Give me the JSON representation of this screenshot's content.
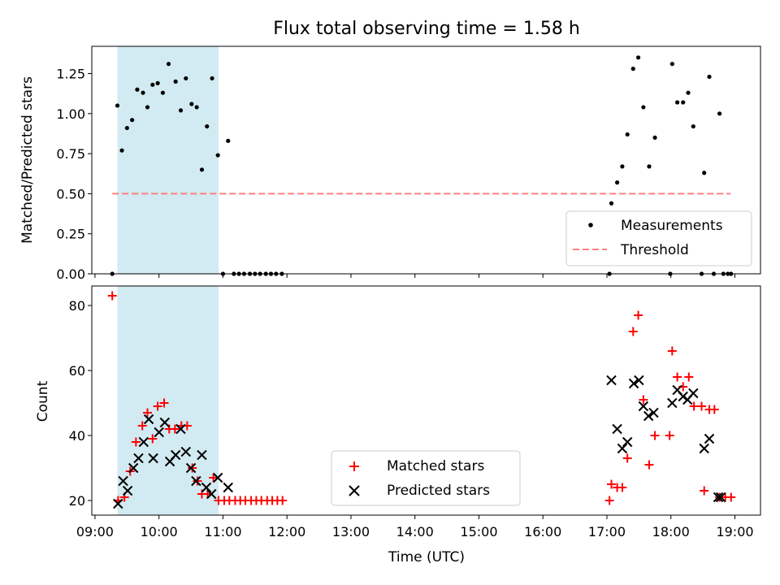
{
  "chart_data": {
    "type": "scatter",
    "title": "Flux total observing time = 1.58 h",
    "xlabel": "Time (UTC)",
    "x_unit": "hours UTC",
    "xlim": [
      8.95,
      19.4
    ],
    "x_ticks": [
      {
        "v": 9,
        "label": "09:00"
      },
      {
        "v": 10,
        "label": "10:00"
      },
      {
        "v": 11,
        "label": "11:00"
      },
      {
        "v": 12,
        "label": "12:00"
      },
      {
        "v": 13,
        "label": "13:00"
      },
      {
        "v": 14,
        "label": "14:00"
      },
      {
        "v": 15,
        "label": "15:00"
      },
      {
        "v": 16,
        "label": "16:00"
      },
      {
        "v": 17,
        "label": "17:00"
      },
      {
        "v": 18,
        "label": "18:00"
      },
      {
        "v": 19,
        "label": "19:00"
      }
    ],
    "shaded_interval": {
      "x0": 9.35,
      "x1": 10.93,
      "color": "#add8e6"
    },
    "colors": {
      "matched": "#ff0000",
      "predicted": "#000000",
      "threshold": "#ff7f7f",
      "measurement": "#000000"
    },
    "top_panel": {
      "ylabel": "Matched/Predicted stars",
      "ylim": [
        0,
        1.42
      ],
      "y_ticks": [
        {
          "v": 0,
          "label": "0.00"
        },
        {
          "v": 0.25,
          "label": "0.25"
        },
        {
          "v": 0.5,
          "label": "0.50"
        },
        {
          "v": 0.75,
          "label": "0.75"
        },
        {
          "v": 1.0,
          "label": "1.00"
        },
        {
          "v": 1.25,
          "label": "1.25"
        }
      ],
      "threshold": {
        "value": 0.5,
        "x_start": 9.27,
        "x_end": 18.93
      },
      "legend": {
        "position": "bottom-right",
        "entries": [
          "Measurements",
          "Threshold"
        ]
      },
      "measurements": [
        [
          9.27,
          0.0
        ],
        [
          9.35,
          1.05
        ],
        [
          9.42,
          0.77
        ],
        [
          9.5,
          0.91
        ],
        [
          9.58,
          0.96
        ],
        [
          9.66,
          1.15
        ],
        [
          9.75,
          1.13
        ],
        [
          9.82,
          1.04
        ],
        [
          9.9,
          1.18
        ],
        [
          9.98,
          1.19
        ],
        [
          10.06,
          1.13
        ],
        [
          10.15,
          1.31
        ],
        [
          10.26,
          1.2
        ],
        [
          10.34,
          1.02
        ],
        [
          10.42,
          1.22
        ],
        [
          10.51,
          1.06
        ],
        [
          10.59,
          1.04
        ],
        [
          10.67,
          0.65
        ],
        [
          10.75,
          0.92
        ],
        [
          10.83,
          1.22
        ],
        [
          10.92,
          0.74
        ],
        [
          11.0,
          0.0
        ],
        [
          11.08,
          0.83
        ],
        [
          11.17,
          0.0
        ],
        [
          11.25,
          0.0
        ],
        [
          11.33,
          0.0
        ],
        [
          11.42,
          0.0
        ],
        [
          11.5,
          0.0
        ],
        [
          11.58,
          0.0
        ],
        [
          11.67,
          0.0
        ],
        [
          11.75,
          0.0
        ],
        [
          11.83,
          0.0
        ],
        [
          11.92,
          0.0
        ],
        [
          17.04,
          0.0
        ],
        [
          17.07,
          0.44
        ],
        [
          17.16,
          0.57
        ],
        [
          17.24,
          0.67
        ],
        [
          17.32,
          0.87
        ],
        [
          17.41,
          1.28
        ],
        [
          17.49,
          1.35
        ],
        [
          17.57,
          1.04
        ],
        [
          17.66,
          0.67
        ],
        [
          17.75,
          0.85
        ],
        [
          17.99,
          0.0
        ],
        [
          18.02,
          1.31
        ],
        [
          18.1,
          1.07
        ],
        [
          18.19,
          1.07
        ],
        [
          18.27,
          1.13
        ],
        [
          18.35,
          0.92
        ],
        [
          18.48,
          0.0
        ],
        [
          18.52,
          0.63
        ],
        [
          18.6,
          1.23
        ],
        [
          18.67,
          0.0
        ],
        [
          18.76,
          1.0
        ],
        [
          18.82,
          0.0
        ],
        [
          18.89,
          0.0
        ],
        [
          18.94,
          0.0
        ]
      ]
    },
    "bottom_panel": {
      "ylabel": "Count",
      "ylim": [
        15.5,
        86
      ],
      "y_ticks": [
        {
          "v": 20,
          "label": "20"
        },
        {
          "v": 40,
          "label": "40"
        },
        {
          "v": 60,
          "label": "60"
        },
        {
          "v": 80,
          "label": "80"
        }
      ],
      "legend": {
        "position": "lower-center",
        "entries": [
          "Matched stars",
          "Predicted stars"
        ]
      },
      "matched_stars": [
        [
          9.27,
          83
        ],
        [
          9.36,
          20
        ],
        [
          9.46,
          21
        ],
        [
          9.55,
          29
        ],
        [
          9.64,
          38
        ],
        [
          9.74,
          43
        ],
        [
          9.82,
          47
        ],
        [
          9.9,
          39
        ],
        [
          9.98,
          49
        ],
        [
          10.08,
          50
        ],
        [
          10.16,
          42
        ],
        [
          10.25,
          42
        ],
        [
          10.35,
          43
        ],
        [
          10.44,
          43
        ],
        [
          10.52,
          30
        ],
        [
          10.6,
          26
        ],
        [
          10.67,
          22
        ],
        [
          10.76,
          22
        ],
        [
          10.85,
          27
        ],
        [
          10.93,
          20
        ],
        [
          11.02,
          20
        ],
        [
          11.1,
          20
        ],
        [
          11.19,
          20
        ],
        [
          11.27,
          20
        ],
        [
          11.35,
          20
        ],
        [
          11.44,
          20
        ],
        [
          11.52,
          20
        ],
        [
          11.6,
          20
        ],
        [
          11.69,
          20
        ],
        [
          11.77,
          20
        ],
        [
          11.85,
          20
        ],
        [
          11.93,
          20
        ],
        [
          17.04,
          20
        ],
        [
          17.07,
          25
        ],
        [
          17.16,
          24
        ],
        [
          17.24,
          24
        ],
        [
          17.32,
          33
        ],
        [
          17.41,
          72
        ],
        [
          17.49,
          77
        ],
        [
          17.57,
          51
        ],
        [
          17.66,
          31
        ],
        [
          17.75,
          40
        ],
        [
          17.98,
          40
        ],
        [
          18.02,
          66
        ],
        [
          18.1,
          58
        ],
        [
          18.19,
          55
        ],
        [
          18.28,
          58
        ],
        [
          18.36,
          49
        ],
        [
          18.48,
          49
        ],
        [
          18.52,
          23
        ],
        [
          18.6,
          48
        ],
        [
          18.68,
          48
        ],
        [
          18.76,
          21
        ],
        [
          18.85,
          21
        ],
        [
          18.94,
          21
        ]
      ],
      "predicted_stars": [
        [
          9.36,
          19
        ],
        [
          9.44,
          26
        ],
        [
          9.51,
          23
        ],
        [
          9.6,
          30
        ],
        [
          9.68,
          33
        ],
        [
          9.76,
          38
        ],
        [
          9.84,
          45
        ],
        [
          9.91,
          33
        ],
        [
          10.0,
          41
        ],
        [
          10.09,
          44
        ],
        [
          10.17,
          32
        ],
        [
          10.26,
          34
        ],
        [
          10.34,
          42
        ],
        [
          10.42,
          35
        ],
        [
          10.5,
          30
        ],
        [
          10.58,
          26
        ],
        [
          10.67,
          34
        ],
        [
          10.74,
          24
        ],
        [
          10.82,
          22
        ],
        [
          10.92,
          27
        ],
        [
          11.08,
          24
        ],
        [
          17.07,
          57
        ],
        [
          17.16,
          42
        ],
        [
          17.24,
          36
        ],
        [
          17.32,
          38
        ],
        [
          17.42,
          56
        ],
        [
          17.5,
          57
        ],
        [
          17.57,
          49
        ],
        [
          17.65,
          46
        ],
        [
          17.73,
          47
        ],
        [
          18.02,
          50
        ],
        [
          18.1,
          54
        ],
        [
          18.19,
          52
        ],
        [
          18.26,
          51
        ],
        [
          18.35,
          53
        ],
        [
          18.52,
          36
        ],
        [
          18.6,
          39
        ],
        [
          18.74,
          21
        ],
        [
          18.78,
          21
        ]
      ]
    }
  }
}
